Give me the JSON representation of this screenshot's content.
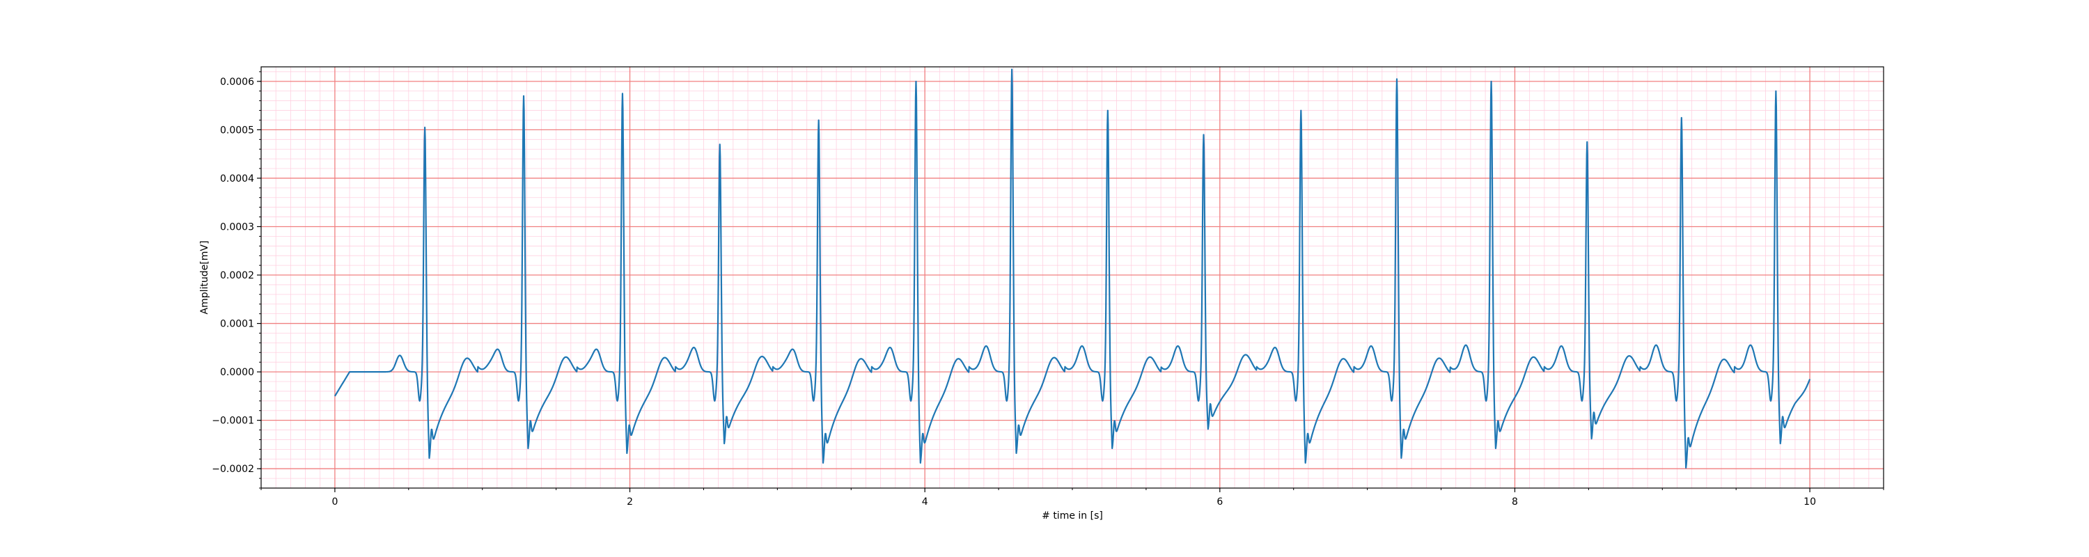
{
  "chart_data": {
    "type": "line",
    "title": "",
    "xlabel": "# time in [s]",
    "ylabel": "Amplitude[mV]",
    "xlim": [
      -0.5,
      10.5
    ],
    "ylim": [
      -0.00024,
      0.00063
    ],
    "xticks": [
      0,
      2,
      4,
      6,
      8,
      10
    ],
    "xtick_labels": [
      "0",
      "2",
      "4",
      "6",
      "8",
      "10"
    ],
    "yticks": [
      -0.0002,
      -0.0001,
      0.0,
      0.0001,
      0.0002,
      0.0003,
      0.0004,
      0.0005,
      0.0006
    ],
    "ytick_labels": [
      "−0.0002",
      "−0.0001",
      "0.0000",
      "0.0001",
      "0.0002",
      "0.0003",
      "0.0004",
      "0.0005",
      "0.0006"
    ],
    "grid": {
      "major": true,
      "minor": true,
      "major_color": "#f08080",
      "minor_color": "#ffd0e0"
    },
    "line_color": "#1f77b4",
    "series": [
      {
        "beats": [
          {
            "r_time": 0.61,
            "r_peak": 0.000475,
            "s_min": -0.00018
          },
          {
            "r_time": 1.28,
            "r_peak": 0.00054,
            "s_min": -0.00016
          },
          {
            "r_time": 1.95,
            "r_peak": 0.000545,
            "s_min": -0.00017
          },
          {
            "r_time": 2.61,
            "r_peak": 0.00044,
            "s_min": -0.00015
          },
          {
            "r_time": 3.28,
            "r_peak": 0.00049,
            "s_min": -0.00019
          },
          {
            "r_time": 3.94,
            "r_peak": 0.00057,
            "s_min": -0.00019
          },
          {
            "r_time": 4.59,
            "r_peak": 0.000595,
            "s_min": -0.00017
          },
          {
            "r_time": 5.24,
            "r_peak": 0.00051,
            "s_min": -0.00016
          },
          {
            "r_time": 5.89,
            "r_peak": 0.00046,
            "s_min": -0.00012
          },
          {
            "r_time": 6.55,
            "r_peak": 0.00051,
            "s_min": -0.00019
          },
          {
            "r_time": 7.2,
            "r_peak": 0.000575,
            "s_min": -0.00018
          },
          {
            "r_time": 7.84,
            "r_peak": 0.00057,
            "s_min": -0.00016
          },
          {
            "r_time": 8.49,
            "r_peak": 0.000445,
            "s_min": -0.00014
          },
          {
            "r_time": 9.13,
            "r_peak": 0.000495,
            "s_min": -0.0002
          },
          {
            "r_time": 9.77,
            "r_peak": 0.00055,
            "s_min": -0.00015
          }
        ],
        "t_start": 0.0,
        "t_end": 10.0,
        "y_start": -5e-05,
        "y_end": -1.5e-05
      }
    ]
  }
}
